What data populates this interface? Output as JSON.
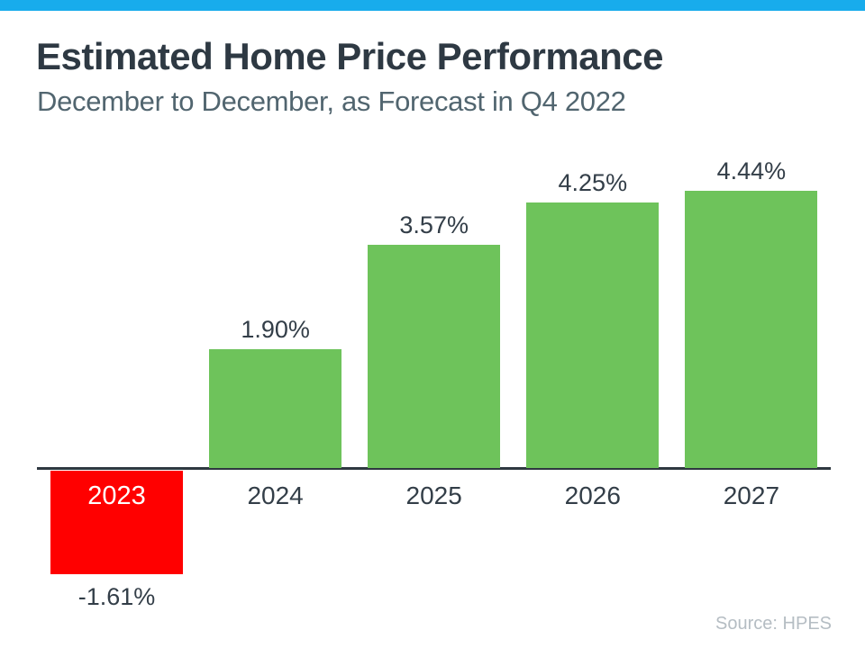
{
  "theme": {
    "accent_bar_color": "#18ACEC",
    "background": "#FFFFFF",
    "title_color": "#2E3943",
    "subtitle_color": "#51656F",
    "label_color": "#333E48",
    "source_color": "#B5BDC3"
  },
  "header": {
    "title": "Estimated Home Price Performance",
    "subtitle": "December to December, as Forecast in Q4 2022"
  },
  "footer": {
    "source": "Source: HPES"
  },
  "chart_data": {
    "type": "bar",
    "title": "Estimated Home Price Performance",
    "subtitle": "December to December, as Forecast in Q4 2022",
    "categories": [
      "2023",
      "2024",
      "2025",
      "2026",
      "2027"
    ],
    "values": [
      -1.61,
      1.9,
      3.57,
      4.25,
      4.44
    ],
    "value_labels": [
      "-1.61%",
      "1.90%",
      "3.57%",
      "4.25%",
      "4.44%"
    ],
    "xlabel": "",
    "ylabel": "",
    "ylim": [
      -2,
      5
    ],
    "grid": false,
    "legend": false,
    "positive_color": "#6EC35B",
    "negative_color": "#FF0000",
    "axis_color": "#2E3840",
    "label_color": "#333E48",
    "negative_year_label_color": "#FFFFFF",
    "source": "Source: HPES"
  }
}
